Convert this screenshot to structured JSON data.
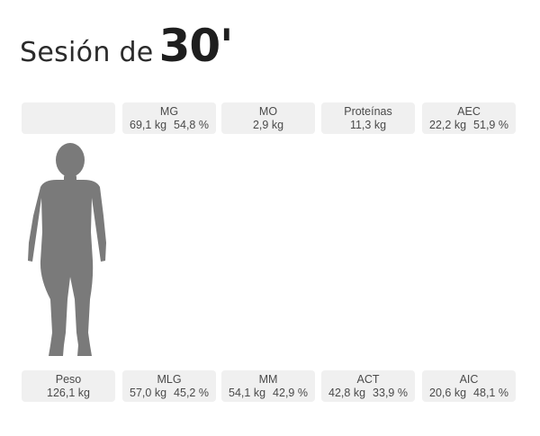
{
  "title": {
    "prefix": "Sesión de",
    "number": "30'"
  },
  "top_labels": [
    {
      "name": "",
      "value1": "",
      "value2": ""
    },
    {
      "name": "MG",
      "value1": "69,1 kg",
      "value2": "54,8 %"
    },
    {
      "name": "MO",
      "value1": "2,9 kg",
      "value2": ""
    },
    {
      "name": "Proteínas",
      "value1": "11,3 kg",
      "value2": ""
    },
    {
      "name": "AEC",
      "value1": "22,2 kg",
      "value2": "51,9 %"
    }
  ],
  "bottom_labels": [
    {
      "name": "Peso",
      "value1": "126,1 kg",
      "value2": ""
    },
    {
      "name": "MLG",
      "value1": "57,0 kg",
      "value2": "45,2 %"
    },
    {
      "name": "MM",
      "value1": "54,1 kg",
      "value2": "42,9 %"
    },
    {
      "name": "ACT",
      "value1": "42,8 kg",
      "value2": "33,9 %"
    },
    {
      "name": "AIC",
      "value1": "20,6 kg",
      "value2": "48,1 %"
    }
  ],
  "colors": {
    "body_gray": "#7a7a7a",
    "body_light": "#e2e2e2",
    "mg_orange": "#f6c08c",
    "mlg_green": "#a8c7a8",
    "mm_red": "#c98e8e",
    "mo_dark": "#8c8c8c",
    "proteinas_pink": "#e285e0",
    "act_purple": "#8c87c9",
    "aic_lavender": "#c6c4e3",
    "box_bg": "#f0f0f0"
  }
}
